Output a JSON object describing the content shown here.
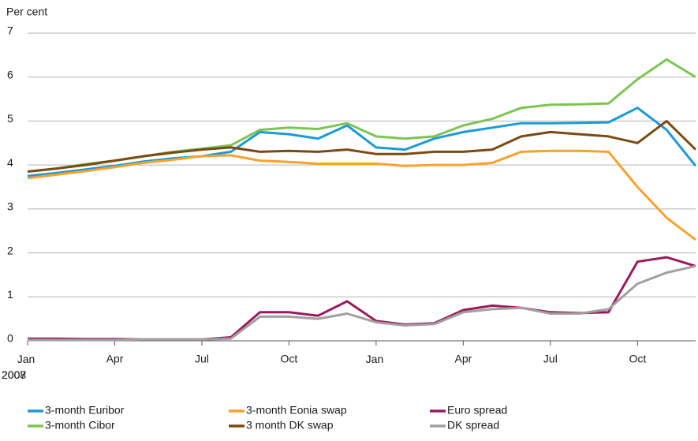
{
  "chart_data": {
    "type": "line",
    "y_label": "Per cent",
    "x": [
      "2007-01",
      "2007-02",
      "2007-03",
      "2007-04",
      "2007-05",
      "2007-06",
      "2007-07",
      "2007-08",
      "2007-09",
      "2007-10",
      "2007-11",
      "2007-12",
      "2008-01",
      "2008-02",
      "2008-03",
      "2008-04",
      "2008-05",
      "2008-06",
      "2008-07",
      "2008-08",
      "2008-09",
      "2008-10",
      "2008-11",
      "2008-12"
    ],
    "xlim": [
      "2007-01",
      "2008-12"
    ],
    "xticks": [
      {
        "value": "2007-01",
        "label": "Jan 2007"
      },
      {
        "value": "2007-04",
        "label": "Apr"
      },
      {
        "value": "2007-07",
        "label": "Jul"
      },
      {
        "value": "2007-10",
        "label": "Oct"
      },
      {
        "value": "2008-01",
        "label": "Jan 2008"
      },
      {
        "value": "2008-04",
        "label": "Apr"
      },
      {
        "value": "2008-07",
        "label": "Jul"
      },
      {
        "value": "2008-10",
        "label": "Oct"
      }
    ],
    "ylim": [
      0,
      7
    ],
    "yticks": [
      0,
      1,
      2,
      3,
      4,
      5,
      6,
      7
    ],
    "grid": true,
    "series": [
      {
        "name": "3-month Euribor",
        "color": "#1c9ad6",
        "values": [
          3.75,
          3.82,
          3.9,
          3.98,
          4.08,
          4.15,
          4.2,
          4.3,
          4.75,
          4.7,
          4.6,
          4.9,
          4.4,
          4.35,
          4.6,
          4.75,
          4.85,
          4.95,
          4.95,
          4.96,
          4.97,
          5.3,
          4.8,
          3.98
        ]
      },
      {
        "name": "3-month Cibor",
        "color": "#7dc454",
        "values": [
          3.85,
          3.92,
          4.02,
          4.1,
          4.2,
          4.3,
          4.37,
          4.45,
          4.8,
          4.85,
          4.82,
          4.95,
          4.65,
          4.6,
          4.65,
          4.9,
          5.05,
          5.3,
          5.37,
          5.38,
          5.4,
          5.95,
          6.4,
          6.0
        ]
      },
      {
        "name": "3-month Eonia swap",
        "color": "#f7a22d",
        "values": [
          3.7,
          3.78,
          3.86,
          3.95,
          4.05,
          4.12,
          4.2,
          4.22,
          4.1,
          4.07,
          4.03,
          4.03,
          4.03,
          3.98,
          4.0,
          4.0,
          4.05,
          4.3,
          4.32,
          4.32,
          4.3,
          3.5,
          2.8,
          2.3
        ]
      },
      {
        "name": "3 month DK swap",
        "color": "#7b4a12",
        "values": [
          3.85,
          3.92,
          4.0,
          4.1,
          4.2,
          4.28,
          4.35,
          4.4,
          4.3,
          4.32,
          4.3,
          4.35,
          4.25,
          4.25,
          4.3,
          4.3,
          4.35,
          4.65,
          4.75,
          4.7,
          4.65,
          4.5,
          5.0,
          4.35
        ]
      },
      {
        "name": "Euro spread",
        "color": "#9b1b5a",
        "values": [
          0.05,
          0.05,
          0.04,
          0.04,
          0.03,
          0.03,
          0.03,
          0.08,
          0.65,
          0.65,
          0.57,
          0.9,
          0.45,
          0.37,
          0.4,
          0.7,
          0.8,
          0.75,
          0.65,
          0.63,
          0.65,
          1.8,
          1.9,
          1.7
        ]
      },
      {
        "name": "DK spread",
        "color": "#a0a0a0",
        "values": [
          0.02,
          0.02,
          0.02,
          0.02,
          0.03,
          0.03,
          0.03,
          0.05,
          0.55,
          0.55,
          0.5,
          0.62,
          0.42,
          0.35,
          0.38,
          0.65,
          0.72,
          0.75,
          0.62,
          0.62,
          0.72,
          1.3,
          1.55,
          1.7
        ]
      }
    ]
  }
}
